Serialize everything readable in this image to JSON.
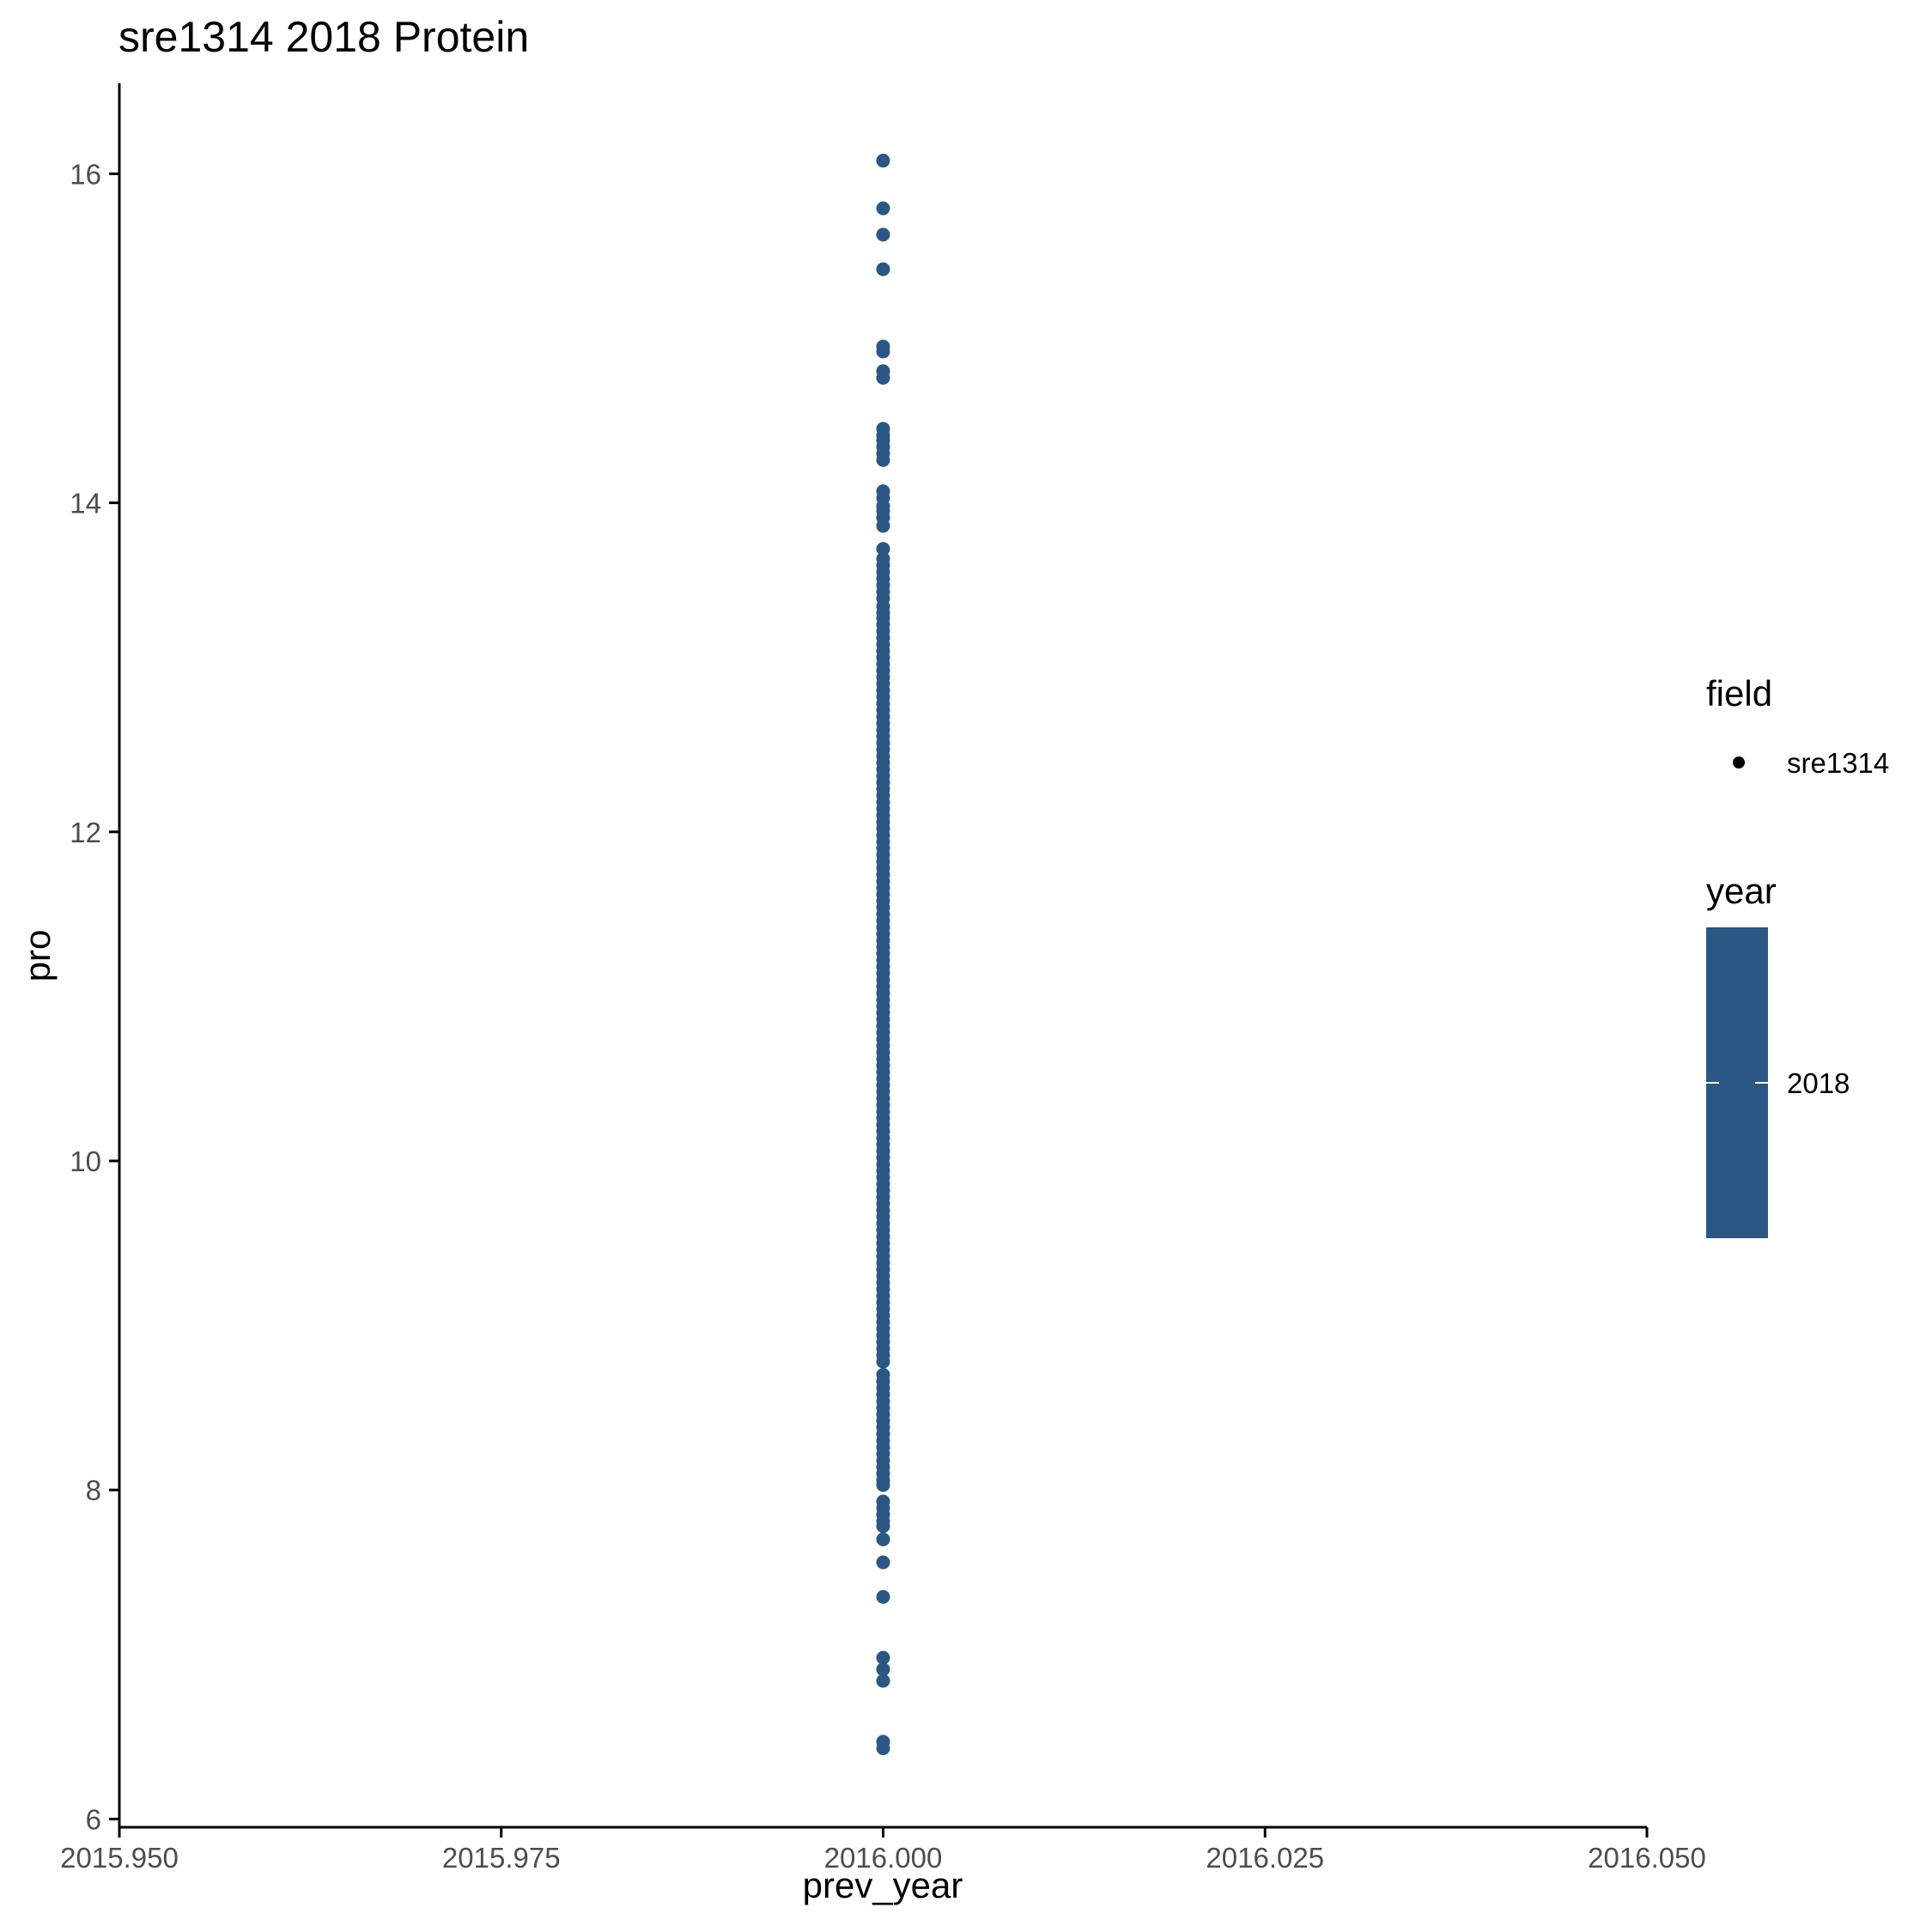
{
  "chart_data": {
    "type": "scatter",
    "title": "sre1314 2018 Protein",
    "xlabel": "prev_year",
    "ylabel": "pro",
    "xlim": [
      2015.95,
      2016.05
    ],
    "ylim": [
      5.95,
      16.55
    ],
    "x_ticks": [
      2015.95,
      2015.975,
      2016.0,
      2016.025,
      2016.05
    ],
    "x_tick_labels": [
      "2015.950",
      "2015.975",
      "2016.000",
      "2016.025",
      "2016.050"
    ],
    "y_ticks": [
      6,
      8,
      10,
      12,
      14,
      16
    ],
    "y_tick_labels": [
      "6",
      "8",
      "10",
      "12",
      "14",
      "16"
    ],
    "grid": false,
    "point_color": "#2a5783",
    "legend_position": "right",
    "legend": {
      "shape_title": "field",
      "shape_items": [
        "sre1314"
      ],
      "color_title": "year",
      "color_items": [
        "2018"
      ]
    },
    "series": [
      {
        "name": "sre1314",
        "x": 2016.0,
        "y": [
          16.08,
          15.79,
          15.63,
          15.42,
          14.95,
          14.92,
          14.8,
          14.76,
          14.45,
          14.41,
          14.38,
          14.34,
          14.3,
          14.26,
          14.07,
          14.03,
          13.98,
          13.95,
          13.91,
          13.86,
          13.72,
          13.66,
          13.62,
          13.58,
          13.54,
          13.5,
          13.46,
          13.42,
          13.37,
          13.33,
          13.3,
          13.26,
          13.22,
          13.18,
          13.14,
          13.1,
          13.06,
          13.02,
          12.98,
          12.94,
          12.9,
          12.86,
          12.82,
          12.78,
          12.74,
          12.7,
          12.66,
          12.62,
          12.58,
          12.54,
          12.5,
          12.46,
          12.42,
          12.38,
          12.34,
          12.3,
          12.26,
          12.22,
          12.18,
          12.14,
          12.1,
          12.06,
          12.02,
          11.98,
          11.94,
          11.9,
          11.86,
          11.82,
          11.78,
          11.74,
          11.7,
          11.66,
          11.62,
          11.58,
          11.54,
          11.5,
          11.46,
          11.42,
          11.38,
          11.34,
          11.3,
          11.26,
          11.22,
          11.18,
          11.14,
          11.1,
          11.06,
          11.02,
          10.98,
          10.94,
          10.9,
          10.86,
          10.82,
          10.78,
          10.74,
          10.7,
          10.66,
          10.62,
          10.58,
          10.54,
          10.5,
          10.46,
          10.42,
          10.38,
          10.34,
          10.3,
          10.26,
          10.22,
          10.18,
          10.14,
          10.1,
          10.06,
          10.02,
          9.98,
          9.94,
          9.9,
          9.86,
          9.82,
          9.78,
          9.74,
          9.7,
          9.66,
          9.62,
          9.58,
          9.54,
          9.5,
          9.46,
          9.42,
          9.38,
          9.34,
          9.3,
          9.26,
          9.22,
          9.18,
          9.14,
          9.1,
          9.06,
          9.02,
          8.98,
          8.94,
          8.9,
          8.86,
          8.82,
          8.78,
          8.7,
          8.66,
          8.62,
          8.58,
          8.54,
          8.5,
          8.46,
          8.42,
          8.38,
          8.34,
          8.3,
          8.26,
          8.22,
          8.18,
          8.14,
          8.1,
          8.06,
          8.03,
          7.93,
          7.89,
          7.85,
          7.81,
          7.78,
          7.7,
          7.56,
          7.35,
          6.98,
          6.91,
          6.84,
          6.47,
          6.43
        ]
      }
    ]
  }
}
